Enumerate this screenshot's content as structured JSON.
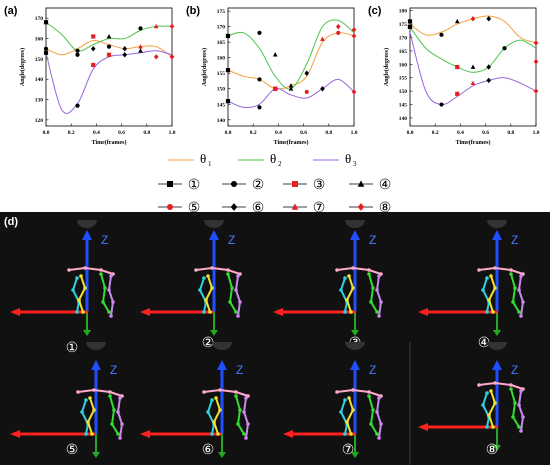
{
  "colors": {
    "theta1": "#f5a040",
    "theta2": "#4cc44c",
    "theta3": "#9966dd",
    "black": "#000000",
    "red": "#e52020"
  },
  "chart_data": [
    {
      "type": "line",
      "panel": "(a)",
      "xlabel": "Time(frames)",
      "ylabel": "Angle(degrees)",
      "xlim": [
        0,
        1.0
      ],
      "ylim": [
        117,
        175
      ],
      "xticks": [
        "0.0",
        "0.2",
        "0.4",
        "0.6",
        "0.8",
        "1.0"
      ],
      "xtick_values": [
        0,
        0.2,
        0.4,
        0.6,
        0.8,
        1.0
      ],
      "yticks": [
        "120",
        "130",
        "140",
        "150",
        "160",
        "170"
      ],
      "ytick_values": [
        120,
        130,
        140,
        150,
        160,
        170
      ],
      "x": [
        0,
        0.125,
        0.25,
        0.375,
        0.5,
        0.625,
        0.75,
        0.875,
        1.0
      ],
      "series": [
        {
          "color_key": "theta1",
          "values": [
            155,
            152,
            155,
            159,
            157,
            155,
            156,
            156,
            151
          ]
        },
        {
          "color_key": "theta2",
          "values": [
            168,
            162,
            154,
            157,
            160,
            160,
            164,
            166,
            166
          ]
        },
        {
          "color_key": "theta3",
          "values": [
            153,
            125,
            128,
            145,
            151,
            152,
            153,
            154,
            152
          ]
        }
      ],
      "markers": [
        {
          "series": 0,
          "points": [
            [
              0,
              155,
              "circle",
              "black"
            ],
            [
              0.25,
              152,
              "circle",
              "black"
            ],
            [
              0.375,
              155,
              "diamond",
              "black"
            ],
            [
              0.5,
              156,
              "circle",
              "black"
            ],
            [
              0.625,
              155,
              "diamond",
              "black"
            ],
            [
              0.75,
              156,
              "triangle",
              "red"
            ],
            [
              1.0,
              151,
              "diamond",
              "red"
            ]
          ]
        },
        {
          "series": 1,
          "points": [
            [
              0,
              168,
              "square",
              "black"
            ],
            [
              0.25,
              154,
              "circle",
              "black"
            ],
            [
              0.375,
              161,
              "square",
              "red"
            ],
            [
              0.5,
              161,
              "triangle",
              "black"
            ],
            [
              0.75,
              165,
              "circle",
              "black"
            ],
            [
              0.875,
              166,
              "triangle",
              "red"
            ],
            [
              1.0,
              166,
              "diamond",
              "red"
            ]
          ]
        },
        {
          "series": 2,
          "points": [
            [
              0,
              153,
              "square",
              "black"
            ],
            [
              0.25,
              127,
              "circle",
              "black"
            ],
            [
              0.375,
              147,
              "square",
              "red"
            ],
            [
              0.5,
              152,
              "square",
              "red"
            ],
            [
              0.625,
              152,
              "diamond",
              "black"
            ],
            [
              0.75,
              154,
              "triangle",
              "black"
            ],
            [
              0.875,
              151,
              "diamond",
              "red"
            ],
            [
              1.0,
              151,
              "diamond",
              "red"
            ]
          ]
        }
      ]
    },
    {
      "type": "line",
      "panel": "(b)",
      "xlabel": "Time(frames)",
      "ylabel": "Angle(degrees)",
      "xlim": [
        0,
        1.0
      ],
      "ylim": [
        138,
        176
      ],
      "xticks": [
        "0.0",
        "0.2",
        "0.4",
        "0.6",
        "0.8",
        "1.0"
      ],
      "xtick_values": [
        0,
        0.2,
        0.4,
        0.6,
        0.8,
        1.0
      ],
      "yticks": [
        "140",
        "145",
        "150",
        "155",
        "160",
        "165",
        "170",
        "175"
      ],
      "ytick_values": [
        140,
        145,
        150,
        155,
        160,
        165,
        170,
        175
      ],
      "x": [
        0,
        0.125,
        0.25,
        0.375,
        0.5,
        0.625,
        0.75,
        0.875,
        1.0
      ],
      "series": [
        {
          "color_key": "theta1",
          "values": [
            156,
            154,
            153,
            150,
            151,
            154,
            165,
            168,
            167
          ]
        },
        {
          "color_key": "theta2",
          "values": [
            167,
            168,
            163,
            154,
            150,
            158,
            170,
            172,
            168
          ]
        },
        {
          "color_key": "theta3",
          "values": [
            146,
            144,
            145,
            150,
            148,
            147,
            150,
            153,
            149
          ]
        }
      ],
      "markers": [
        {
          "series": 0,
          "points": [
            [
              0,
              156,
              "square",
              "black"
            ],
            [
              0.25,
              153,
              "circle",
              "black"
            ],
            [
              0.375,
              150,
              "square",
              "red"
            ],
            [
              0.5,
              151,
              "triangle",
              "black"
            ],
            [
              0.75,
              166,
              "triangle",
              "red"
            ],
            [
              0.875,
              168,
              "circle",
              "red"
            ],
            [
              1.0,
              167,
              "diamond",
              "red"
            ]
          ]
        },
        {
          "series": 1,
          "points": [
            [
              0,
              167,
              "square",
              "black"
            ],
            [
              0.25,
              168,
              "circle",
              "black"
            ],
            [
              0.375,
              161,
              "triangle",
              "black"
            ],
            [
              0.625,
              155,
              "diamond",
              "black"
            ],
            [
              0.875,
              170,
              "diamond",
              "red"
            ],
            [
              1.0,
              169,
              "diamond",
              "red"
            ]
          ]
        },
        {
          "series": 2,
          "points": [
            [
              0,
              146,
              "square",
              "black"
            ],
            [
              0.25,
              144,
              "circle",
              "black"
            ],
            [
              0.375,
              150,
              "square",
              "red"
            ],
            [
              0.5,
              150,
              "triangle",
              "black"
            ],
            [
              0.625,
              149,
              "circle",
              "red"
            ],
            [
              0.75,
              150,
              "diamond",
              "black"
            ],
            [
              1.0,
              149,
              "diamond",
              "red"
            ]
          ]
        }
      ]
    },
    {
      "type": "line",
      "panel": "(c)",
      "xlabel": "Time(frames)",
      "ylabel": "Angle(degrees)",
      "xlim": [
        0,
        1.0
      ],
      "ylim": [
        137,
        181
      ],
      "xticks": [
        "0.0",
        "0.2",
        "0.4",
        "0.6",
        "0.8",
        "1.0"
      ],
      "xtick_values": [
        0,
        0.2,
        0.4,
        0.6,
        0.8,
        1.0
      ],
      "yticks": [
        "140",
        "145",
        "150",
        "155",
        "160",
        "165",
        "170",
        "175",
        "180"
      ],
      "ytick_values": [
        140,
        145,
        150,
        155,
        160,
        165,
        170,
        175,
        180
      ],
      "x": [
        0,
        0.125,
        0.25,
        0.375,
        0.5,
        0.625,
        0.75,
        0.875,
        1.0
      ],
      "series": [
        {
          "color_key": "theta1",
          "values": [
            175,
            171,
            172,
            175,
            177,
            178,
            176,
            170,
            168
          ]
        },
        {
          "color_key": "theta2",
          "values": [
            174,
            166,
            162,
            159,
            157,
            159,
            166,
            169,
            166
          ]
        },
        {
          "color_key": "theta3",
          "values": [
            172,
            150,
            145,
            148,
            152,
            154,
            155,
            153,
            150
          ]
        }
      ],
      "markers": [
        {
          "series": 0,
          "points": [
            [
              0,
              176,
              "square",
              "black"
            ],
            [
              0.25,
              171,
              "circle",
              "black"
            ],
            [
              0.375,
              176,
              "triangle",
              "black"
            ],
            [
              0.5,
              177,
              "diamond",
              "red"
            ],
            [
              0.625,
              177,
              "diamond",
              "black"
            ],
            [
              1.0,
              168,
              "diamond",
              "red"
            ]
          ]
        },
        {
          "series": 1,
          "points": [
            [
              0,
              174,
              "square",
              "black"
            ],
            [
              0.375,
              159,
              "square",
              "red"
            ],
            [
              0.5,
              159,
              "triangle",
              "black"
            ],
            [
              0.625,
              159,
              "diamond",
              "black"
            ],
            [
              0.75,
              166,
              "circle",
              "black"
            ],
            [
              1.0,
              161,
              "diamond",
              "red"
            ]
          ]
        },
        {
          "series": 2,
          "points": [
            [
              0,
              174,
              "square",
              "black"
            ],
            [
              0.25,
              145,
              "circle",
              "black"
            ],
            [
              0.375,
              149,
              "square",
              "red"
            ],
            [
              0.5,
              153,
              "triangle",
              "red"
            ],
            [
              0.625,
              154,
              "diamond",
              "black"
            ],
            [
              1.0,
              150,
              "diamond",
              "red"
            ]
          ]
        }
      ]
    }
  ],
  "legend": {
    "theta_labels": [
      "θ",
      "θ",
      "θ"
    ],
    "theta_subs": [
      "1",
      "2",
      "3"
    ],
    "items": [
      {
        "label": "①",
        "shape": "square",
        "color": "black"
      },
      {
        "label": "②",
        "shape": "circle",
        "color": "black"
      },
      {
        "label": "③",
        "shape": "square",
        "color": "red"
      },
      {
        "label": "④",
        "shape": "triangle",
        "color": "black"
      },
      {
        "label": "⑤",
        "shape": "circle",
        "color": "red"
      },
      {
        "label": "⑥",
        "shape": "diamond",
        "color": "black"
      },
      {
        "label": "⑦",
        "shape": "triangle",
        "color": "red"
      },
      {
        "label": "⑧",
        "shape": "diamond",
        "color": "red"
      }
    ]
  },
  "photo": {
    "panel_label": "(d)",
    "axis_label": "Z",
    "frame_labels": [
      "①",
      "②",
      "③",
      "④",
      "⑤",
      "⑥",
      "⑦",
      "⑧"
    ]
  }
}
